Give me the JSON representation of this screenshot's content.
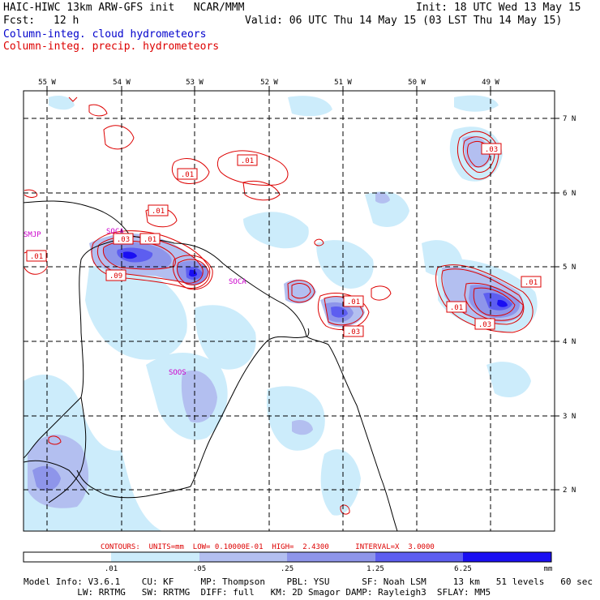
{
  "header": {
    "title": "HAIC-HIWC 13km ARW-GFS init   NCAR/MMM",
    "init": "Init: 18 UTC Wed 13 May 15",
    "fcst_label": "Fcst:",
    "fcst_value": "12 h",
    "valid": "Valid: 06 UTC Thu 14 May 15 (03 LST Thu 14 May 15)",
    "field1": "Column-integ. cloud hydrometeors",
    "field2": "Column-integ. precip. hydrometeors"
  },
  "map": {
    "lon_labels": [
      "55 W",
      "54 W",
      "53 W",
      "52 W",
      "51 W",
      "50 W",
      "49 W"
    ],
    "lat_labels": [
      "7 N",
      "6 N",
      "5 N",
      "4 N",
      "3 N",
      "2 N"
    ],
    "station_labels": [
      "SMJP",
      "SOCA",
      "SOCA",
      "SOOS"
    ],
    "contour_labels": [
      ".01",
      ".01",
      ".01",
      ".03",
      ".01",
      ".01",
      ".09",
      ".03",
      ".01",
      ".03",
      ".01",
      ".03",
      ".01",
      ".01"
    ]
  },
  "contour_info": "CONTOURS:  UNITS=mm  LOW= 0.10000E-01  HIGH=  2.4300      INTERVAL=X  3.0000",
  "colorbar": {
    "ticks": [
      ".01",
      ".05",
      ".25",
      "1.25",
      "6.25"
    ],
    "units": "mm",
    "colors": [
      "#ffffff",
      "#ccecfb",
      "#b3bff0",
      "#8e95ea",
      "#5d5ef0",
      "#1a0ff2"
    ]
  },
  "footer": {
    "line1": "Model Info: V3.6.1    CU: KF     MP: Thompson    PBL: YSU      SF: Noah LSM     13 km   51 levels   60 sec",
    "line2": "          LW: RRTMG   SW: RRTMG  DIFF: full   KM: 2D Smagor DAMP: Rayleigh3  SFLAY: MM5"
  }
}
